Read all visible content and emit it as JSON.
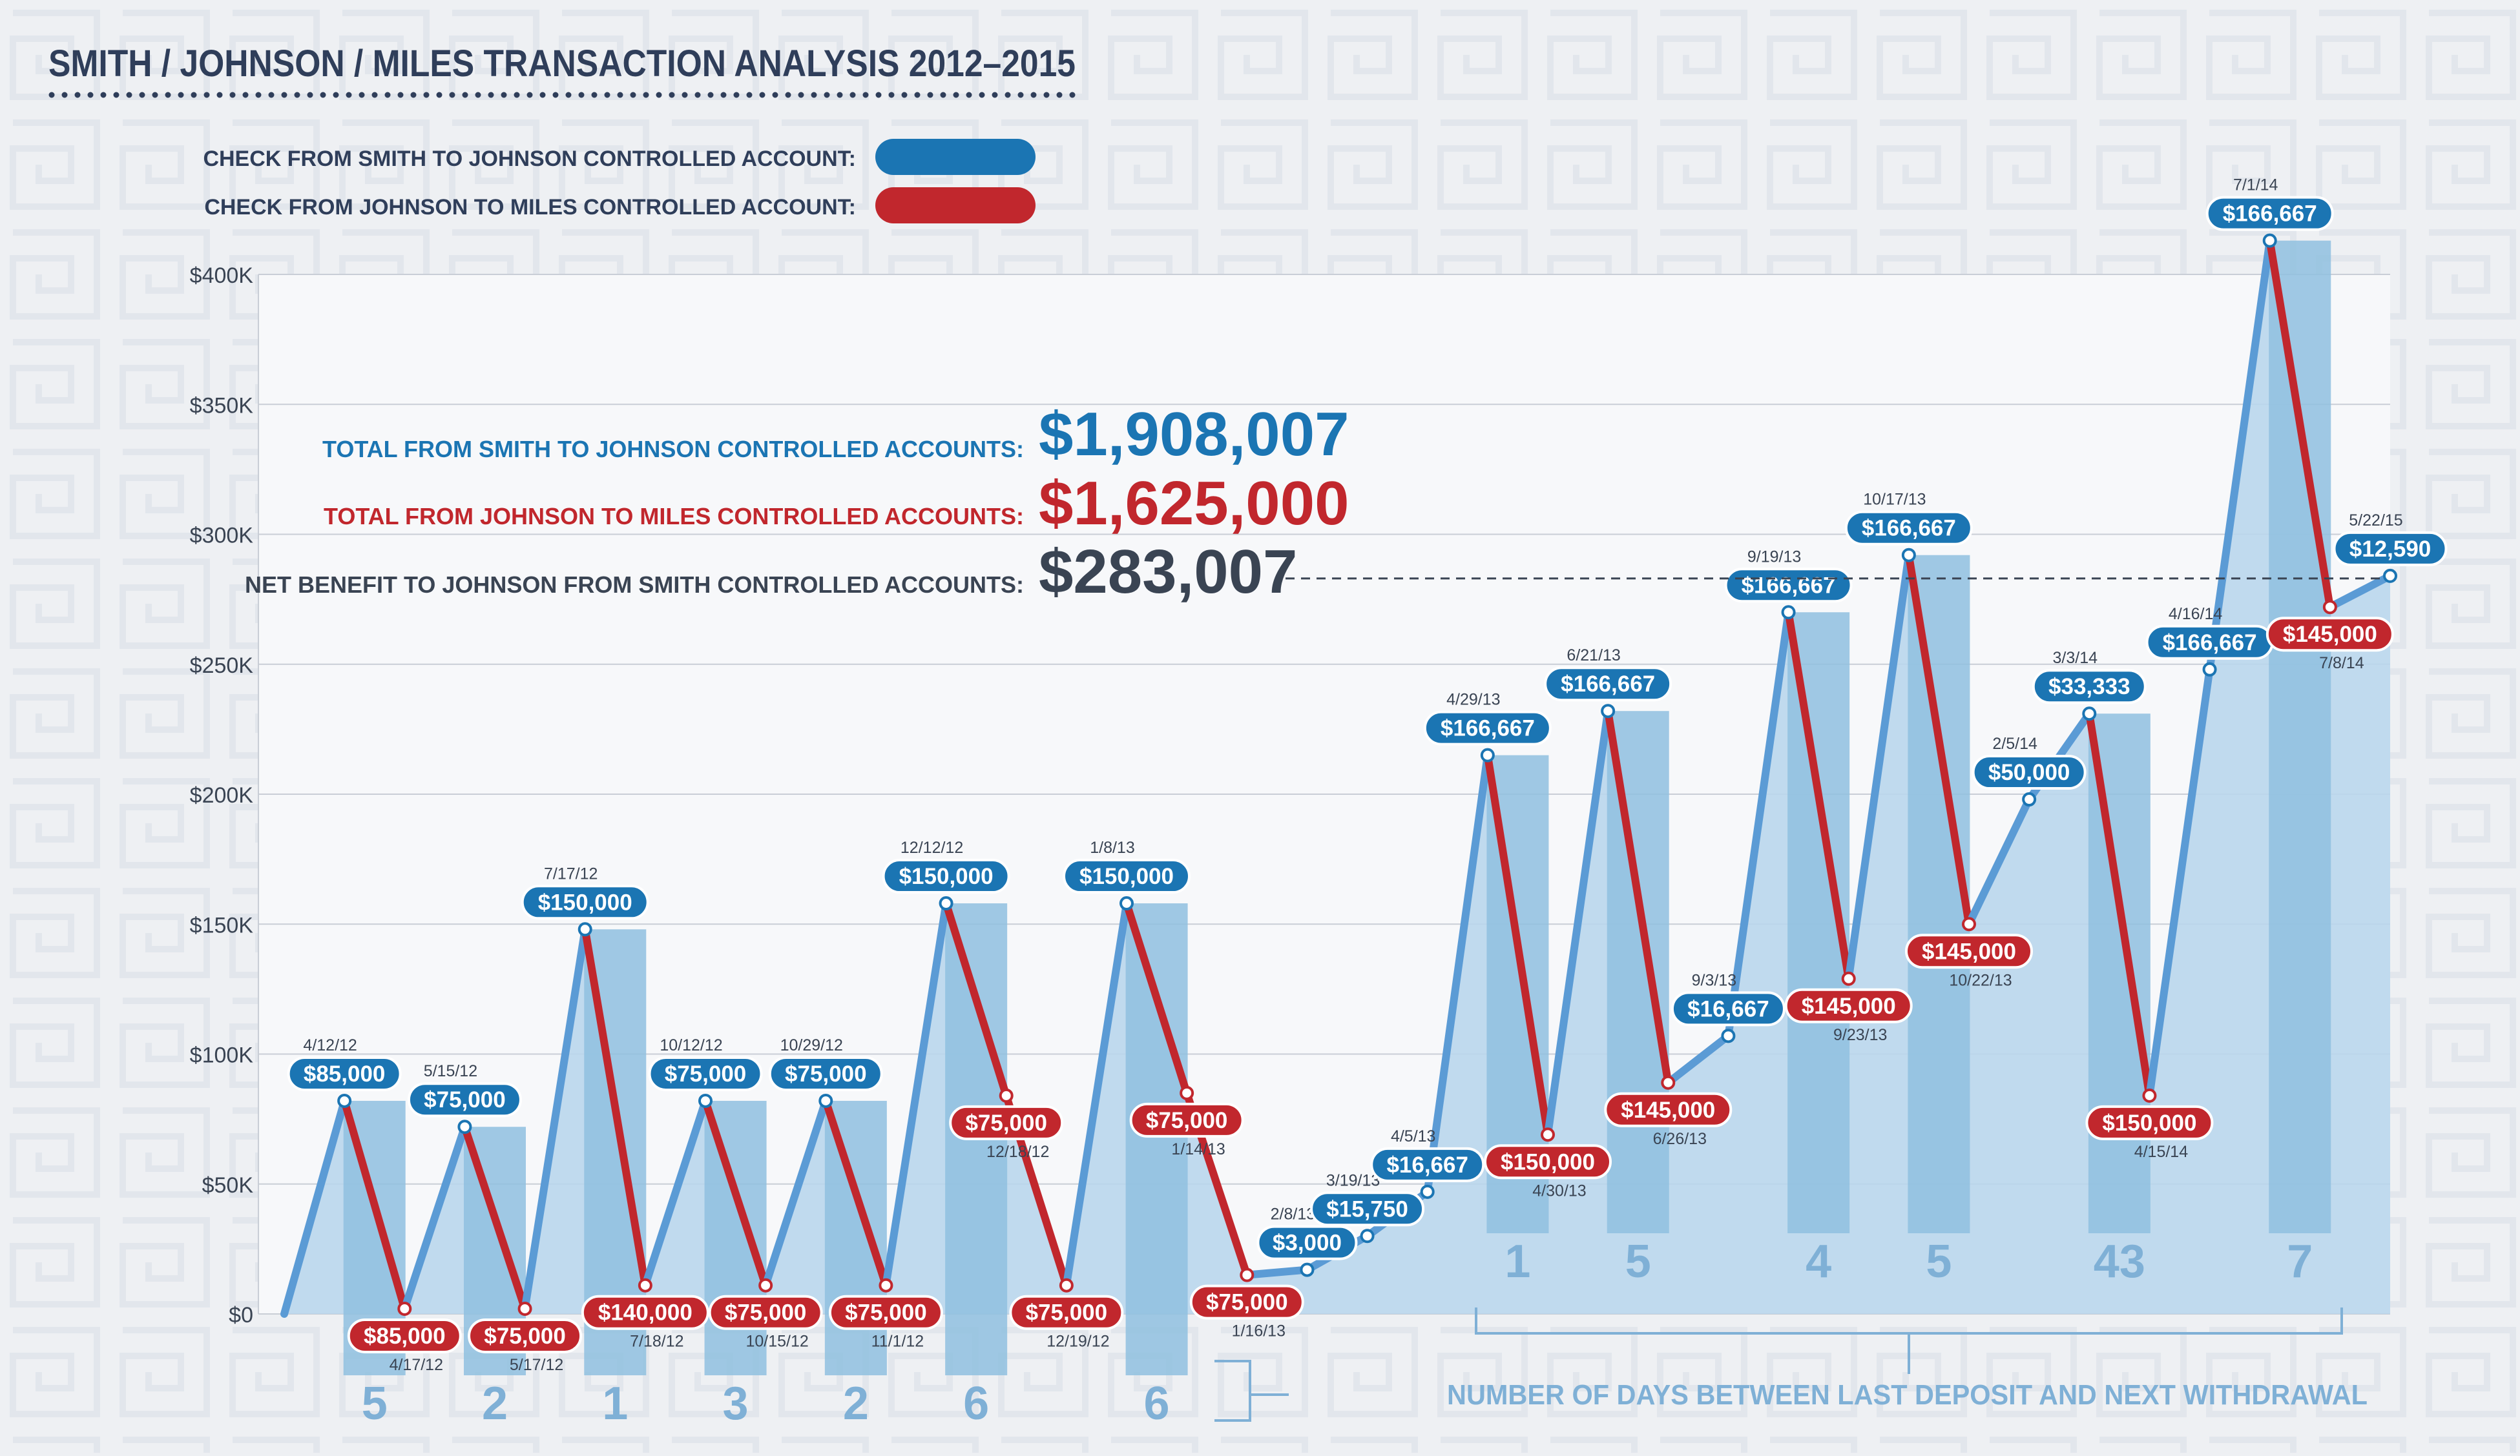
{
  "title": "SMITH / JOHNSON / MILES TRANSACTION ANALYSIS 2012–2015",
  "legend": {
    "blue_label": "CHECK FROM SMITH TO JOHNSON CONTROLLED ACCOUNT:",
    "red_label": "CHECK FROM JOHNSON TO MILES CONTROLLED ACCOUNT:"
  },
  "totals": {
    "smith_label": "TOTAL FROM SMITH TO JOHNSON CONTROLLED ACCOUNTS:",
    "smith_value": "$1,908,007",
    "miles_label": "TOTAL FROM JOHNSON TO MILES CONTROLLED ACCOUNTS:",
    "miles_value": "$1,625,000",
    "net_label": "NET BENEFIT TO JOHNSON FROM SMITH CONTROLLED ACCOUNTS:",
    "net_value": "$283,007"
  },
  "days_caption": "NUMBER OF DAYS BETWEEN LAST DEPOSIT AND NEXT WITHDRAWAL",
  "colors": {
    "blue": "#1b75b3",
    "red": "#c1272d",
    "dark": "#3a4453",
    "line_blue": "#5b9bd5",
    "bar": "#8fbfdf",
    "area": "#b9d6ec",
    "days": "#7fb0d6"
  },
  "chart_data": {
    "type": "line",
    "ylim": [
      0,
      400000
    ],
    "y_ticks": [
      {
        "value": 0,
        "label": "$0"
      },
      {
        "value": 50000,
        "label": "$50K"
      },
      {
        "value": 100000,
        "label": "$100K"
      },
      {
        "value": 150000,
        "label": "$150K"
      },
      {
        "value": 200000,
        "label": "$200K"
      },
      {
        "value": 250000,
        "label": "$250K"
      },
      {
        "value": 300000,
        "label": "$300K"
      },
      {
        "value": 350000,
        "label": "$350K"
      },
      {
        "value": 400000,
        "label": "$400K"
      }
    ],
    "net_benefit_value": 283007,
    "points": [
      {
        "balance": 0,
        "type": "start"
      },
      {
        "balance": 82000,
        "type": "deposit",
        "date": "4/12/12",
        "amount": "$85,000"
      },
      {
        "balance": 2000,
        "type": "withdrawal",
        "date": "4/17/12",
        "amount": "$85,000"
      },
      {
        "balance": 72000,
        "type": "deposit",
        "date": "5/15/12",
        "amount": "$75,000"
      },
      {
        "balance": 2000,
        "type": "withdrawal",
        "date": "5/17/12",
        "amount": "$75,000"
      },
      {
        "balance": 148000,
        "type": "deposit",
        "date": "7/17/12",
        "amount": "$150,000"
      },
      {
        "balance": 11000,
        "type": "withdrawal",
        "date": "7/18/12",
        "amount": "$140,000"
      },
      {
        "balance": 82000,
        "type": "deposit",
        "date": "10/12/12",
        "amount": "$75,000"
      },
      {
        "balance": 11000,
        "type": "withdrawal",
        "date": "10/15/12",
        "amount": "$75,000"
      },
      {
        "balance": 82000,
        "type": "deposit",
        "date": "10/29/12",
        "amount": "$75,000"
      },
      {
        "balance": 11000,
        "type": "withdrawal",
        "date": "11/1/12",
        "amount": "$75,000"
      },
      {
        "balance": 158000,
        "type": "deposit",
        "date": "12/12/12",
        "amount": "$150,000"
      },
      {
        "balance": 84000,
        "type": "withdrawal",
        "date": "12/18/12",
        "amount": "$75,000"
      },
      {
        "balance": 11000,
        "type": "withdrawal",
        "date": "12/19/12",
        "amount": "$75,000"
      },
      {
        "balance": 158000,
        "type": "deposit",
        "date": "1/8/13",
        "amount": "$150,000"
      },
      {
        "balance": 85000,
        "type": "withdrawal",
        "date": "1/14/13",
        "amount": "$75,000"
      },
      {
        "balance": 15000,
        "type": "withdrawal",
        "date": "1/16/13",
        "amount": "$75,000"
      },
      {
        "balance": 17000,
        "type": "deposit",
        "date": "2/8/13",
        "amount": "$3,000"
      },
      {
        "balance": 30000,
        "type": "deposit",
        "date": "3/19/13",
        "amount": "$15,750"
      },
      {
        "balance": 47000,
        "type": "deposit",
        "date": "4/5/13",
        "amount": "$16,667"
      },
      {
        "balance": 215000,
        "type": "deposit",
        "date": "4/29/13",
        "amount": "$166,667"
      },
      {
        "balance": 69000,
        "type": "withdrawal",
        "date": "4/30/13",
        "amount": "$150,000"
      },
      {
        "balance": 232000,
        "type": "deposit",
        "date": "6/21/13",
        "amount": "$166,667"
      },
      {
        "balance": 89000,
        "type": "withdrawal",
        "date": "6/26/13",
        "amount": "$145,000"
      },
      {
        "balance": 107000,
        "type": "deposit",
        "date": "9/3/13",
        "amount": "$16,667"
      },
      {
        "balance": 270000,
        "type": "deposit",
        "date": "9/19/13",
        "amount": "$166,667"
      },
      {
        "balance": 129000,
        "type": "withdrawal",
        "date": "9/23/13",
        "amount": "$145,000"
      },
      {
        "balance": 292000,
        "type": "deposit",
        "date": "10/17/13",
        "amount": "$166,667"
      },
      {
        "balance": 150000,
        "type": "withdrawal",
        "date": "10/22/13",
        "amount": "$145,000"
      },
      {
        "balance": 198000,
        "type": "deposit",
        "date": "2/5/14",
        "amount": "$50,000"
      },
      {
        "balance": 231000,
        "type": "deposit",
        "date": "3/3/14",
        "amount": "$33,333"
      },
      {
        "balance": 84000,
        "type": "withdrawal",
        "date": "4/15/14",
        "amount": "$150,000"
      },
      {
        "balance": 248000,
        "type": "deposit",
        "date": "4/16/14",
        "amount": "$166,667"
      },
      {
        "balance": 413000,
        "type": "deposit",
        "date": "7/1/14",
        "amount": "$166,667"
      },
      {
        "balance": 272000,
        "type": "withdrawal",
        "date": "7/8/14",
        "amount": "$145,000"
      },
      {
        "balance": 284000,
        "type": "deposit",
        "date": "5/22/15",
        "amount": "$12,590"
      }
    ],
    "days_bars": [
      {
        "from": 1,
        "to": 2,
        "days": "5"
      },
      {
        "from": 3,
        "to": 4,
        "days": "2"
      },
      {
        "from": 5,
        "to": 6,
        "days": "1"
      },
      {
        "from": 7,
        "to": 8,
        "days": "3"
      },
      {
        "from": 9,
        "to": 10,
        "days": "2"
      },
      {
        "from": 11,
        "to": 12,
        "days": "6"
      },
      {
        "from": 14,
        "to": 15,
        "days": "6"
      },
      {
        "from": 20,
        "to": 21,
        "days": "1"
      },
      {
        "from": 22,
        "to": 23,
        "days": "5"
      },
      {
        "from": 25,
        "to": 26,
        "days": "4"
      },
      {
        "from": 27,
        "to": 28,
        "days": "5"
      },
      {
        "from": 30,
        "to": 31,
        "days": "43"
      },
      {
        "from": 33,
        "to": 34,
        "days": "7"
      }
    ]
  }
}
